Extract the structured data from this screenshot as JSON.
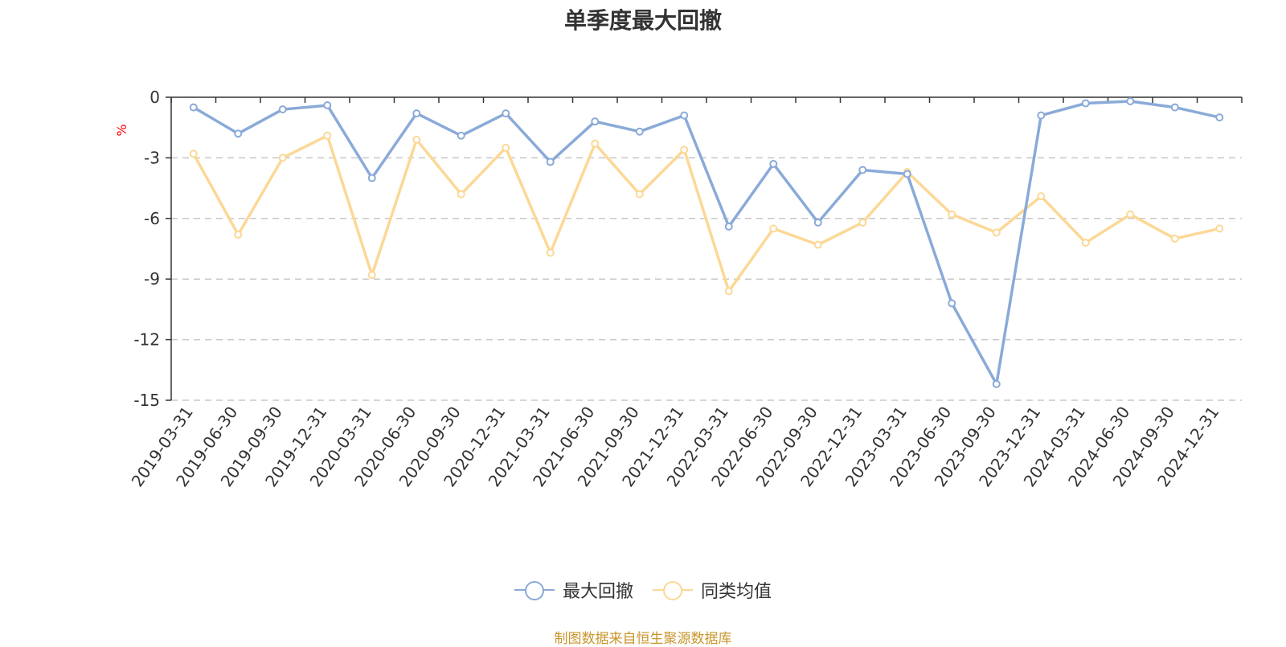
{
  "chart_data": {
    "type": "line",
    "title": "单季度最大回撤",
    "ylabel": "%",
    "xlabel": "",
    "ylim": [
      -15,
      0
    ],
    "yticks": [
      0,
      -3,
      -6,
      -9,
      -12,
      -15
    ],
    "grid": true,
    "legend_position": "bottom",
    "categories": [
      "2019-03-31",
      "2019-06-30",
      "2019-09-30",
      "2019-12-31",
      "2020-03-31",
      "2020-06-30",
      "2020-09-30",
      "2020-12-31",
      "2021-03-31",
      "2021-06-30",
      "2021-09-30",
      "2021-12-31",
      "2022-03-31",
      "2022-06-30",
      "2022-09-30",
      "2022-12-31",
      "2023-03-31",
      "2023-06-30",
      "2023-09-30",
      "2023-12-31",
      "2024-03-31",
      "2024-06-30",
      "2024-09-30",
      "2024-12-31"
    ],
    "series": [
      {
        "name": "最大回撤",
        "color": "#8aaad8",
        "values": [
          -0.5,
          -1.8,
          -0.6,
          -0.4,
          -4.0,
          -0.8,
          -1.9,
          -0.8,
          -3.2,
          -1.2,
          -1.7,
          -0.9,
          -6.4,
          -3.3,
          -6.2,
          -3.6,
          -3.8,
          -10.2,
          -14.2,
          -0.9,
          -0.3,
          -0.2,
          -0.5,
          -1.0
        ]
      },
      {
        "name": "同类均值",
        "color": "#fcd896",
        "values": [
          -2.8,
          -6.8,
          -3.0,
          -1.9,
          -8.8,
          -2.1,
          -4.8,
          -2.5,
          -7.7,
          -2.3,
          -4.8,
          -2.6,
          -9.6,
          -6.5,
          -7.3,
          -6.2,
          -3.7,
          -5.8,
          -6.7,
          -4.9,
          -7.2,
          -5.8,
          -7.0,
          -6.5
        ]
      }
    ]
  },
  "source_note": "制图数据来自恒生聚源数据库"
}
